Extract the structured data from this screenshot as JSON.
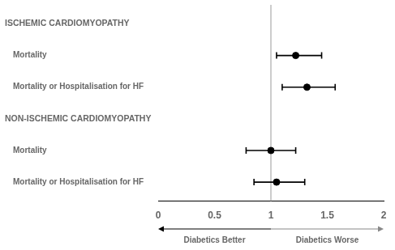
{
  "chart_data": {
    "type": "forest",
    "groups": [
      {
        "header": "ISCHEMIC CARDIOMYOPATHY",
        "categories": [
          "Mortality",
          "Mortality or Hospitalisation for HF"
        ],
        "values": [
          1.22,
          1.32
        ],
        "ci_low": [
          1.05,
          1.1
        ],
        "ci_high": [
          1.45,
          1.57
        ]
      },
      {
        "header": "NON-ISCHEMIC CARDIOMYOPATHY",
        "categories": [
          "Mortality",
          "Mortality or Hospitalisation for HF"
        ],
        "values": [
          1.0,
          1.05
        ],
        "ci_low": [
          0.78,
          0.85
        ],
        "ci_high": [
          1.22,
          1.3
        ]
      }
    ],
    "color": "#000000",
    "xlim": [
      0,
      2
    ],
    "xticks": [
      0,
      0.5,
      1,
      1.5,
      2
    ],
    "reference_line": {
      "x": 1.0,
      "color": "#999999"
    },
    "annotations": [
      {
        "text": "Diabetics Better",
        "from": 1,
        "to": 0,
        "color": "#000000"
      },
      {
        "text": "Diabetics Worse",
        "from": 1,
        "to": 2,
        "color": "#888888"
      }
    ],
    "grid": false
  }
}
